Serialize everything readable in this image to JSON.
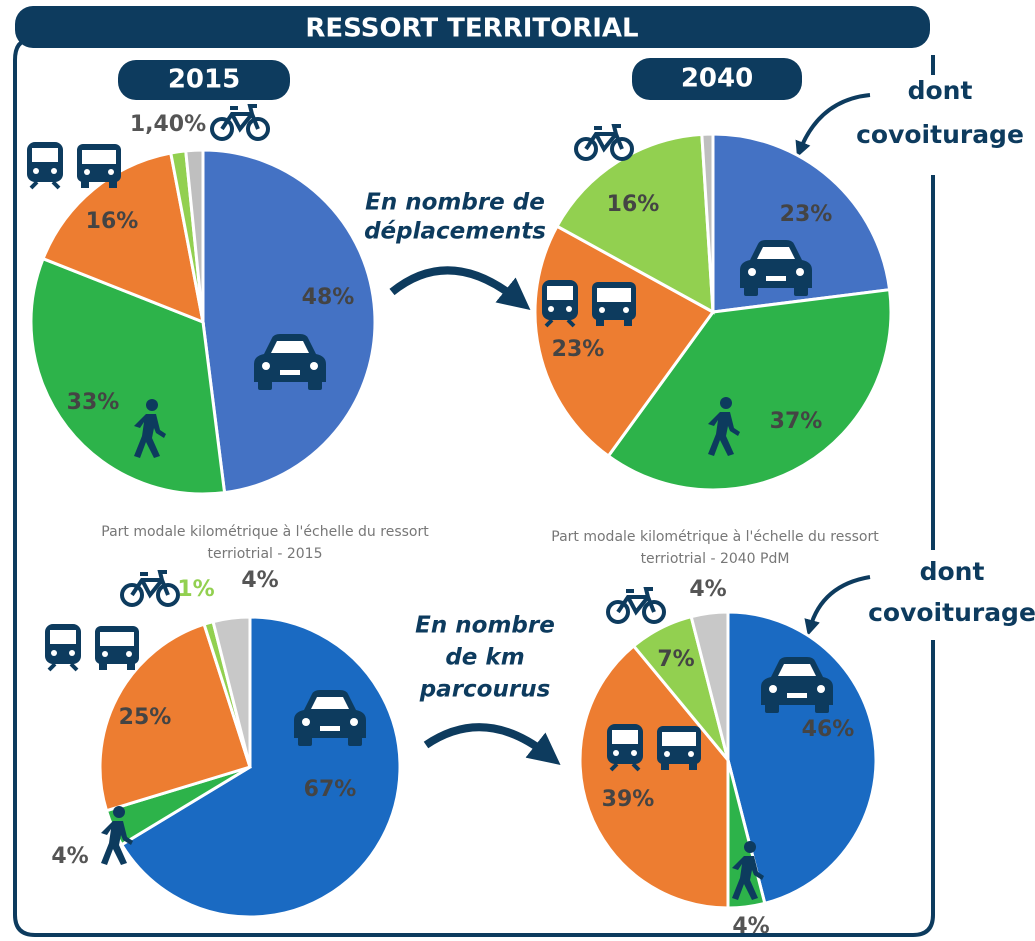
{
  "title": "RESSORT TERRITORIAL",
  "captions": [
    [
      "En nombre de",
      "déplacements"
    ],
    [
      "En nombre",
      "de km",
      "parcourus"
    ]
  ],
  "notes": [
    [
      "dont",
      "covoiturage"
    ],
    [
      "dont",
      "covoiturage"
    ]
  ],
  "chart_data": [
    {
      "type": "pie",
      "title": [
        "2015"
      ],
      "values": [
        48,
        33,
        16,
        1.4,
        1.6
      ],
      "value_labels": [
        "48%",
        "33%",
        "16%",
        "1,40%",
        null
      ],
      "colors": [
        "#4472c4",
        "#2db34a",
        "#ed7d31",
        "#92d050",
        "#bfbfbf"
      ]
    },
    {
      "type": "pie",
      "title": [
        "2040"
      ],
      "values": [
        23,
        37,
        23,
        16,
        1
      ],
      "value_labels": [
        "23%",
        "37%",
        "23%",
        "16%",
        null
      ],
      "colors": [
        "#4472c4",
        "#2db34a",
        "#ed7d31",
        "#92d050",
        "#bfbfbf"
      ]
    },
    {
      "type": "pie",
      "title": [
        "Part modale kilométrique à l'échelle du ressort",
        "terriotrial - 2015"
      ],
      "values": [
        67,
        4,
        25,
        1,
        4
      ],
      "value_labels": [
        "67%",
        "4%",
        "25%",
        "1%",
        "4%"
      ],
      "colors": [
        "#1a6ac2",
        "#2db34a",
        "#ed7d31",
        "#92d050",
        "#c8c8c8"
      ]
    },
    {
      "type": "pie",
      "title": [
        "Part modale kilométrique à l'échelle du ressort",
        "terriotrial - 2040 PdM"
      ],
      "values": [
        46,
        4,
        39,
        7,
        4
      ],
      "value_labels": [
        "46%",
        "4%",
        "39%",
        "7%",
        "4%"
      ],
      "colors": [
        "#1a6ac2",
        "#2db34a",
        "#ed7d31",
        "#92d050",
        "#c8c8c8"
      ]
    }
  ]
}
